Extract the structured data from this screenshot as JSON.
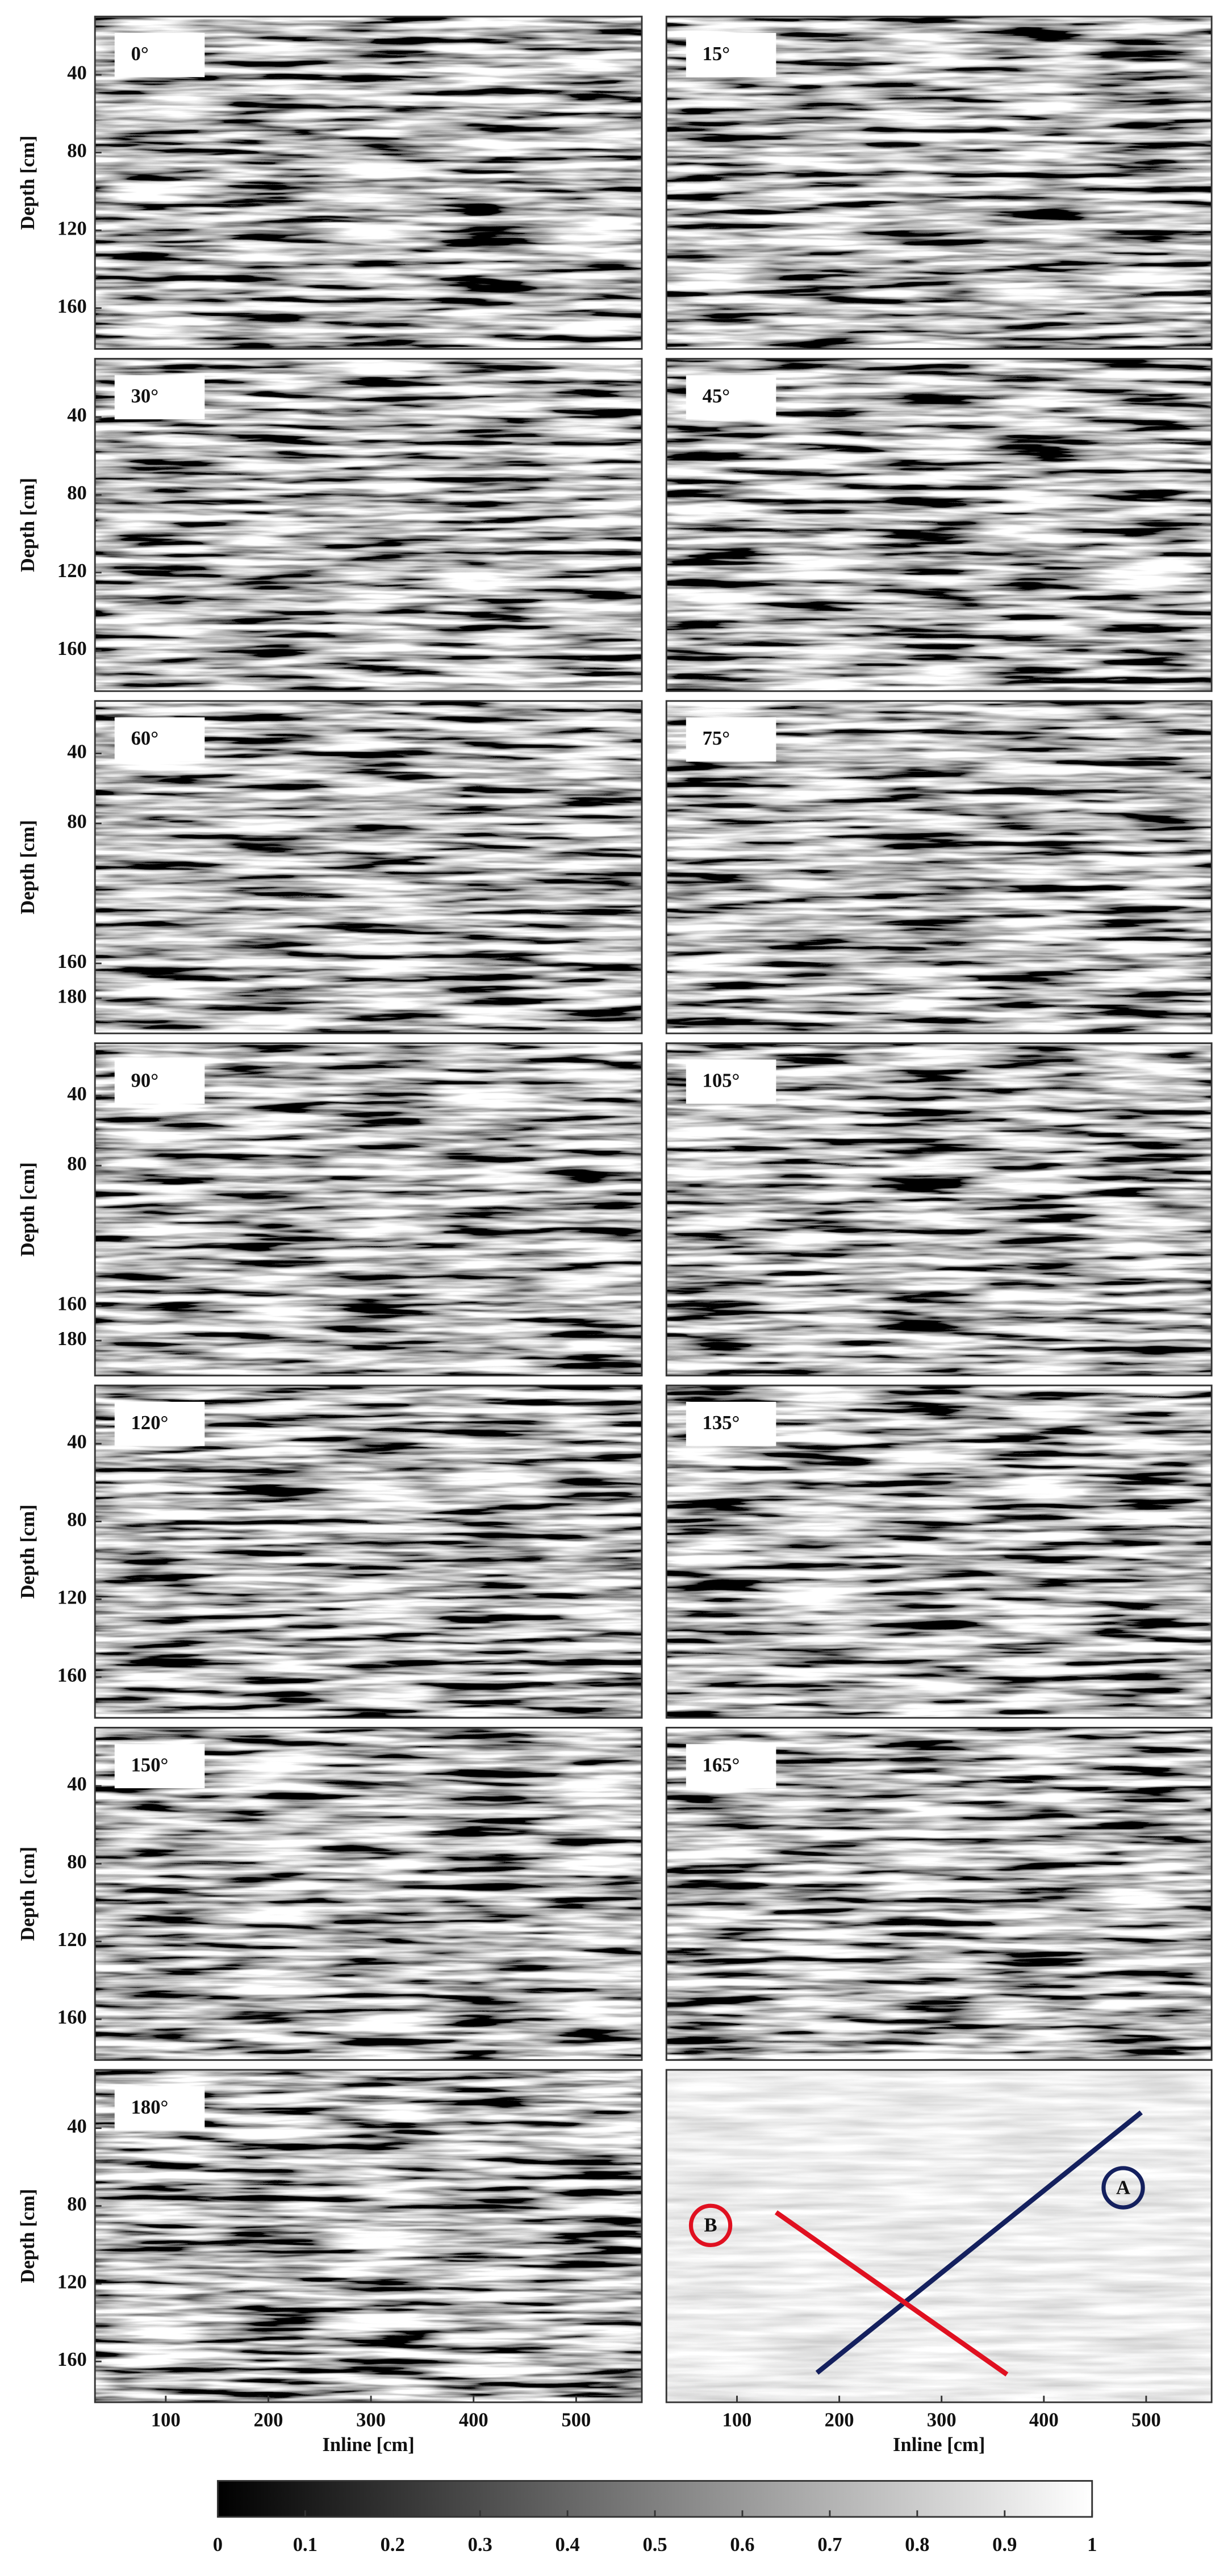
{
  "chart_data": [
    {
      "type": "image",
      "label": "0°",
      "ylabel": "Depth [cm]",
      "ylim": [
        10,
        181
      ],
      "yticks": [
        40,
        80,
        120,
        160
      ]
    },
    {
      "type": "image",
      "label": "15°"
    },
    {
      "type": "image",
      "label": "30°",
      "ylabel": "Depth [cm]",
      "ylim": [
        10,
        181
      ],
      "yticks": [
        40,
        80,
        120,
        160
      ]
    },
    {
      "type": "image",
      "label": "45°"
    },
    {
      "type": "image",
      "label": "60°",
      "ylabel": "Depth [cm]",
      "ylim": [
        10,
        200
      ],
      "yticks": [
        40,
        80,
        160,
        180
      ]
    },
    {
      "type": "image",
      "label": "75°"
    },
    {
      "type": "image",
      "label": "90°",
      "ylabel": "Depth [cm]",
      "ylim": [
        10,
        200
      ],
      "yticks": [
        40,
        80,
        160,
        180
      ]
    },
    {
      "type": "image",
      "label": "105°"
    },
    {
      "type": "image",
      "label": "120°",
      "ylabel": "Depth [cm]",
      "ylim": [
        10,
        181
      ],
      "yticks": [
        40,
        80,
        120,
        160
      ]
    },
    {
      "type": "image",
      "label": "135°"
    },
    {
      "type": "image",
      "label": "150°",
      "ylabel": "Depth [cm]",
      "ylim": [
        10,
        181
      ],
      "yticks": [
        40,
        80,
        120,
        160
      ]
    },
    {
      "type": "image",
      "label": "165°"
    },
    {
      "type": "image",
      "label": "180°",
      "ylabel": "Depth [cm]",
      "ylim": [
        10,
        181
      ],
      "yticks": [
        40,
        80,
        120,
        160
      ],
      "xlabel": "Inline [cm]",
      "xlim": [
        31,
        564
      ],
      "xticks": [
        100,
        200,
        300,
        400,
        500
      ]
    },
    {
      "type": "image",
      "faded": true,
      "annotations": [
        "A",
        "B"
      ],
      "xlabel": "Inline [cm]",
      "xlim": [
        31,
        564
      ],
      "xticks": [
        100,
        200,
        300,
        400,
        500
      ]
    }
  ],
  "colorbar": {
    "lim": [
      0,
      1
    ],
    "ticks": [
      0,
      0.1,
      0.2,
      0.3,
      0.4,
      0.5,
      0.6,
      0.7,
      0.8,
      0.9,
      1
    ]
  }
}
